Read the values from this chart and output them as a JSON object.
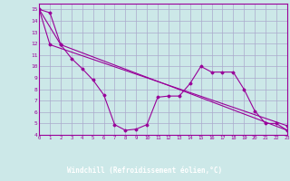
{
  "bg_color": "#cce8e8",
  "grid_color": "#aaaacc",
  "line_color": "#990099",
  "label_bg": "#990099",
  "label_fg": "#ffffff",
  "xlabel": "Windchill (Refroidissement éolien,°C)",
  "xlim": [
    0,
    23
  ],
  "ylim": [
    4,
    15.5
  ],
  "yticks": [
    4,
    5,
    6,
    7,
    8,
    9,
    10,
    11,
    12,
    13,
    14,
    15
  ],
  "xticks": [
    0,
    1,
    2,
    3,
    4,
    5,
    6,
    7,
    8,
    9,
    10,
    11,
    12,
    13,
    14,
    15,
    16,
    17,
    18,
    19,
    20,
    21,
    22,
    23
  ],
  "line1_x": [
    0,
    1,
    2,
    3,
    4,
    5,
    6,
    7,
    8,
    9,
    10,
    11,
    12,
    13,
    14,
    15,
    16,
    17,
    18,
    19,
    20,
    21,
    22,
    23
  ],
  "line1_y": [
    15.0,
    14.7,
    11.9,
    10.7,
    9.8,
    8.8,
    7.5,
    4.9,
    4.4,
    4.5,
    4.9,
    7.3,
    7.4,
    7.4,
    8.5,
    10.0,
    9.5,
    9.5,
    9.5,
    8.0,
    6.1,
    5.0,
    5.0,
    4.4
  ],
  "line2_x": [
    0,
    2,
    23
  ],
  "line2_y": [
    15.0,
    11.9,
    4.4
  ],
  "line3_x": [
    0,
    1,
    23
  ],
  "line3_y": [
    15.0,
    11.9,
    4.8
  ]
}
